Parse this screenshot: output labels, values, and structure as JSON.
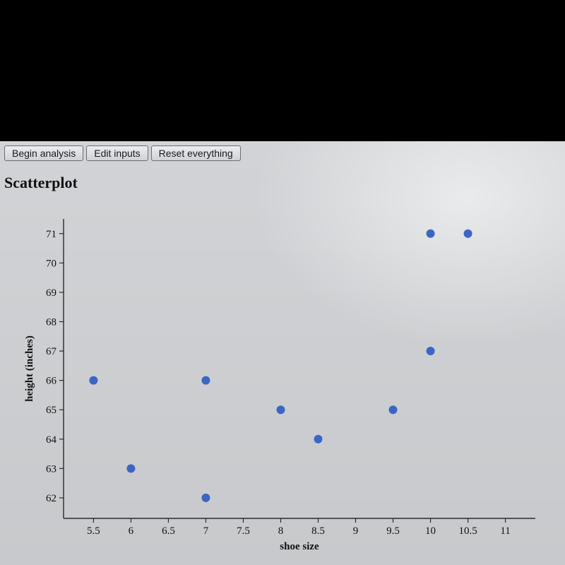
{
  "toolbar": {
    "begin_label": "Begin analysis",
    "edit_label": "Edit inputs",
    "reset_label": "Reset everything"
  },
  "title": "Scatterplot",
  "chart": {
    "type": "scatter",
    "xlabel": "shoe size",
    "ylabel": "height (inches)",
    "xlim": [
      5.1,
      11.4
    ],
    "ylim": [
      61.3,
      71.5
    ],
    "x_ticks": [
      5.5,
      6,
      6.5,
      7,
      7.5,
      8,
      8.5,
      9,
      9.5,
      10,
      10.5,
      11
    ],
    "y_ticks": [
      62,
      63,
      64,
      65,
      66,
      67,
      68,
      69,
      70,
      71
    ],
    "tick_fontsize": 15,
    "label_fontsize": 15,
    "axis_color": "#2a2a2a",
    "tick_color": "#2a2a2a",
    "background_color": "transparent",
    "marker_color": "#3a66c4",
    "marker_radius": 6,
    "points": [
      {
        "x": 5.5,
        "y": 66.0
      },
      {
        "x": 6.0,
        "y": 63.0
      },
      {
        "x": 7.0,
        "y": 66.0
      },
      {
        "x": 7.0,
        "y": 62.0
      },
      {
        "x": 8.0,
        "y": 65.0
      },
      {
        "x": 8.5,
        "y": 64.0
      },
      {
        "x": 9.5,
        "y": 65.0
      },
      {
        "x": 10.0,
        "y": 67.0
      },
      {
        "x": 10.0,
        "y": 71.0
      },
      {
        "x": 10.5,
        "y": 71.0
      }
    ]
  }
}
